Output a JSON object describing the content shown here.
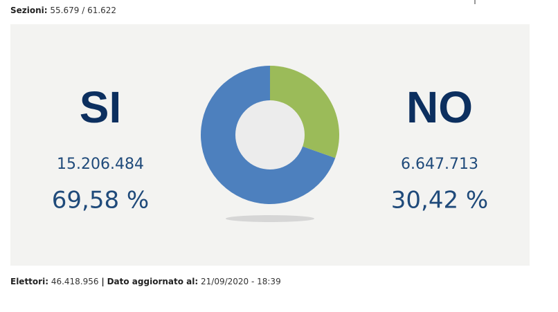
{
  "header": {
    "label": "Sezioni:",
    "value": "55.679 / 61.622"
  },
  "chart_data": {
    "type": "donut",
    "categories": [
      "SI",
      "NO"
    ],
    "values": [
      69.58,
      30.42
    ],
    "value_labels": [
      "69,58 %",
      "30,42 %"
    ],
    "votes": [
      "15.206.484",
      "6.647.713"
    ],
    "colors": [
      "#4d80be",
      "#9bbb59"
    ]
  },
  "footer": {
    "electors_label": "Elettori:",
    "electors": "46.418.956",
    "separator": "|",
    "updated_label": "Dato aggiornato al:",
    "updated": "21/09/2020 - 18:39"
  }
}
